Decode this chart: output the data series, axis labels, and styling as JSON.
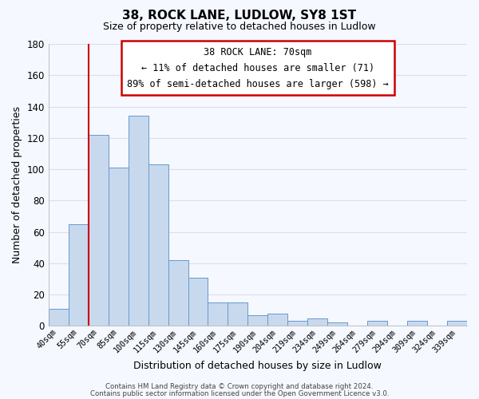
{
  "title": "38, ROCK LANE, LUDLOW, SY8 1ST",
  "subtitle": "Size of property relative to detached houses in Ludlow",
  "xlabel": "Distribution of detached houses by size in Ludlow",
  "ylabel": "Number of detached properties",
  "footer_lines": [
    "Contains HM Land Registry data © Crown copyright and database right 2024.",
    "Contains public sector information licensed under the Open Government Licence v3.0."
  ],
  "bar_labels": [
    "40sqm",
    "55sqm",
    "70sqm",
    "85sqm",
    "100sqm",
    "115sqm",
    "130sqm",
    "145sqm",
    "160sqm",
    "175sqm",
    "190sqm",
    "204sqm",
    "219sqm",
    "234sqm",
    "249sqm",
    "264sqm",
    "279sqm",
    "294sqm",
    "309sqm",
    "324sqm",
    "339sqm"
  ],
  "bar_values": [
    11,
    65,
    122,
    101,
    134,
    103,
    42,
    31,
    15,
    15,
    7,
    8,
    3,
    5,
    2,
    0,
    3,
    0,
    3,
    0,
    3
  ],
  "bar_color": "#c8d9ee",
  "bar_edge_color": "#6699cc",
  "highlight_bar_index": 2,
  "highlight_color": "#cc0000",
  "ylim": [
    0,
    180
  ],
  "yticks": [
    0,
    20,
    40,
    60,
    80,
    100,
    120,
    140,
    160,
    180
  ],
  "annotation_title": "38 ROCK LANE: 70sqm",
  "annotation_line1": "← 11% of detached houses are smaller (71)",
  "annotation_line2": "89% of semi-detached houses are larger (598) →",
  "bg_color": "#f5f8ff",
  "grid_color": "#ddddee"
}
